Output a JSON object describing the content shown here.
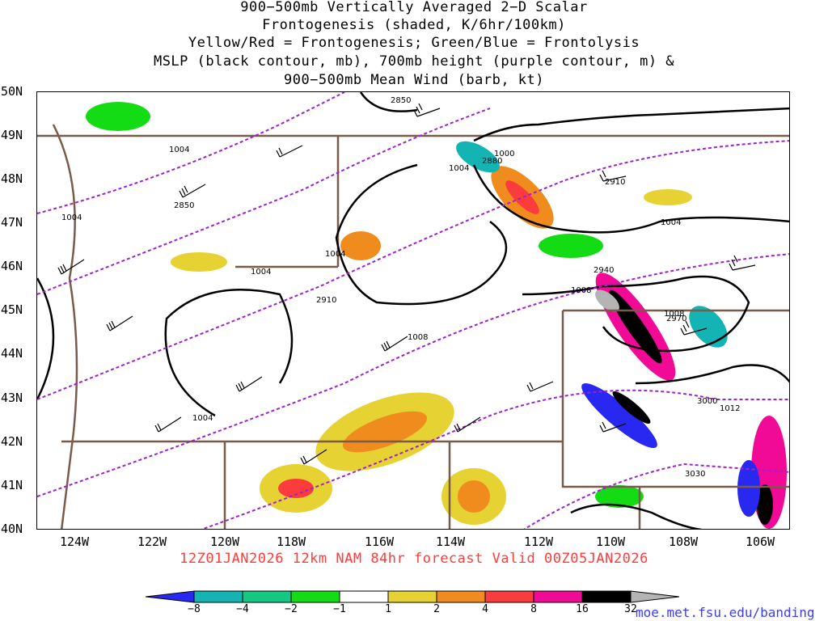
{
  "title": {
    "line1": "900−500mb Vertically Averaged 2−D Scalar",
    "line2": "Frontogenesis (shaded, K/6hr/100km)",
    "line3": "Yellow/Red = Frontogenesis;  Green/Blue = Frontolysis",
    "line4": "MSLP (black contour, mb), 700mb height (purple contour, m) &",
    "line5": "900−500mb Mean Wind (barb, kt)"
  },
  "lat_labels": [
    "50N",
    "49N",
    "48N",
    "47N",
    "46N",
    "45N",
    "44N",
    "43N",
    "42N",
    "41N",
    "40N"
  ],
  "lon_labels": [
    "124W",
    "122W",
    "120W",
    "118W",
    "116W",
    "114W",
    "112W",
    "110W",
    "108W",
    "106W"
  ],
  "valid_text": "12Z01JAN2026 12km NAM 84hr forecast Valid 00Z05JAN2026",
  "colorbar": {
    "labels": [
      "−8",
      "−4",
      "−2",
      "−1",
      "1",
      "2",
      "4",
      "8",
      "16",
      "32"
    ],
    "colors": [
      "#2828f0",
      "#14b4b4",
      "#14c882",
      "#14dc14",
      "#ffffff",
      "#e6d232",
      "#f08c1e",
      "#fa3c3c",
      "#f00a96",
      "#000000",
      "#b4b4b4"
    ]
  },
  "contour_labels": {
    "mslp": [
      "1004",
      "1004",
      "1004",
      "1004",
      "1004",
      "1000",
      "1004",
      "1008",
      "1008",
      "1008",
      "1012",
      "1004"
    ],
    "height": [
      "2850",
      "2850",
      "2880",
      "2910",
      "2910",
      "2940",
      "2970",
      "3000",
      "3030"
    ]
  },
  "colors": {
    "mslp": "#000000",
    "height": "#a020d0",
    "border": "#7a5a48",
    "valid_text": "#ff3b3b",
    "credit": "#3b3bff"
  },
  "credit": "moe.met.fsu.edu/banding"
}
